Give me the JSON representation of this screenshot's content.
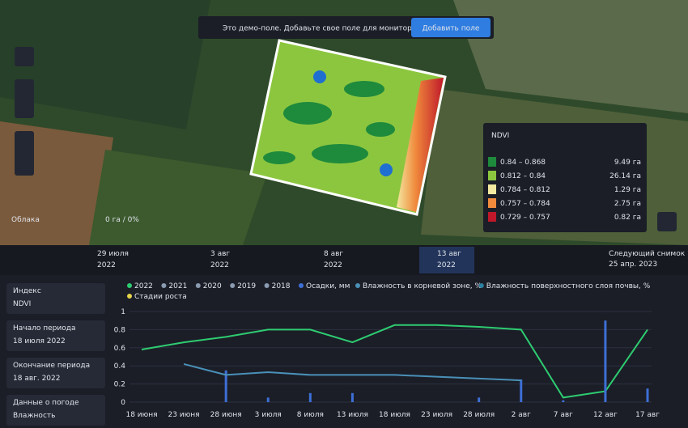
{
  "banner": {
    "text": "Это демо-поле. Добавьте свое поле для мониторинга.",
    "button": "Добавить поле"
  },
  "clouds": {
    "label": "Облака",
    "value": "0 га / 0%"
  },
  "ndvi_legend": {
    "index": "NDVI",
    "rows": [
      {
        "range": "0.84 – 0.868",
        "area": "9.49 га",
        "color": "#1e8a3c"
      },
      {
        "range": "0.812 – 0.84",
        "area": "26.14 га",
        "color": "#8cc63f"
      },
      {
        "range": "0.784 – 0.812",
        "area": "1.29 га",
        "color": "#f3e9a0"
      },
      {
        "range": "0.757 – 0.784",
        "area": "2.75 га",
        "color": "#f08a3c"
      },
      {
        "range": "0.729 – 0.757",
        "area": "0.82 га",
        "color": "#c0182a"
      }
    ]
  },
  "timeline": {
    "dates": [
      [
        "29 июля",
        "2022"
      ],
      [
        "3 авг",
        "2022"
      ],
      [
        "8 авг",
        "2022"
      ],
      [
        "13 авг",
        "2022"
      ]
    ],
    "selected": 3,
    "next_label": "Следующий снимок",
    "next_date": "25 апр. 2023"
  },
  "sidebar": [
    {
      "label": "Индекс",
      "value": "NDVI"
    },
    {
      "label": "Начало периода",
      "value": "18 июля 2022"
    },
    {
      "label": "Окончание периода",
      "value": "18 авг. 2022"
    },
    {
      "label": "Данные о погоде",
      "value": "Влажность"
    }
  ],
  "chart_data": {
    "type": "line",
    "categories": [
      "18 июня",
      "23 июня",
      "28 июня",
      "3 июля",
      "8 июля",
      "13 июля",
      "18 июля",
      "23 июля",
      "28 июля",
      "2 авг",
      "7 авг",
      "12 авг",
      "17 авг"
    ],
    "ylim": [
      0,
      1
    ],
    "yticks": [
      0,
      0.2,
      0.4,
      0.6,
      0.8,
      1
    ],
    "grid": true,
    "series": [
      {
        "name": "2022",
        "color": "#2ecc71",
        "values": [
          0.58,
          0.66,
          0.72,
          0.8,
          0.8,
          0.66,
          0.85,
          0.85,
          0.83,
          0.8,
          0.05,
          0.12,
          0.8
        ]
      },
      {
        "name": "2021",
        "color": "#8a9bb0",
        "values": [
          null,
          null,
          null,
          null,
          null,
          null,
          null,
          null,
          null,
          null,
          null,
          null,
          null
        ]
      },
      {
        "name": "2020",
        "color": "#8a9bb0",
        "values": [
          null,
          null,
          null,
          null,
          null,
          null,
          null,
          null,
          null,
          null,
          null,
          null,
          null
        ]
      },
      {
        "name": "2019",
        "color": "#8a9bb0",
        "values": [
          null,
          null,
          null,
          null,
          null,
          null,
          null,
          null,
          null,
          null,
          null,
          null,
          null
        ]
      },
      {
        "name": "2018",
        "color": "#8a9bb0",
        "values": [
          null,
          null,
          null,
          null,
          null,
          null,
          null,
          null,
          null,
          null,
          null,
          null,
          null
        ]
      },
      {
        "name": "Осадки, мм",
        "color": "#3d6fd6",
        "kind": "bar",
        "values": [
          0,
          0,
          0.35,
          0.05,
          0.1,
          0.1,
          0,
          0,
          0.05,
          0.25,
          0.02,
          0.9,
          0.15
        ]
      },
      {
        "name": "Влажность в корневой зоне, %",
        "color": "#4a90b8",
        "values": [
          null,
          0.42,
          0.3,
          0.33,
          0.3,
          0.3,
          0.3,
          0.28,
          0.26,
          0.24,
          null,
          null,
          null
        ]
      },
      {
        "name": "Влажность поверхностного слоя почвы, %",
        "color": "#2c7fa0",
        "values": [
          null,
          null,
          null,
          null,
          null,
          null,
          null,
          null,
          null,
          null,
          null,
          null,
          null
        ]
      },
      {
        "name": "Стадии роста",
        "color": "#e6d34a",
        "values": [
          null,
          null,
          null,
          null,
          null,
          null,
          null,
          null,
          null,
          null,
          null,
          null,
          null
        ]
      }
    ]
  }
}
